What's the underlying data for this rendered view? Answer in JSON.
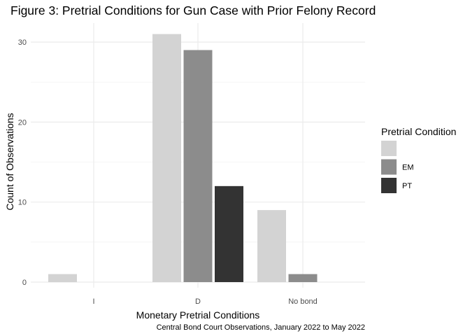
{
  "chart_data": {
    "type": "bar",
    "title": "Figure 3: Pretrial Conditions for Gun Case with Prior Felony Record",
    "xlabel": "Monetary Pretrial Conditions",
    "ylabel": "Count of Observations",
    "caption": "Central Bond Court Observations, January 2022 to May 2022",
    "categories": [
      "I",
      "D",
      "No bond"
    ],
    "ylim": [
      0,
      32.5
    ],
    "yticks": [
      0,
      10,
      20,
      30
    ],
    "grid": true,
    "legend": {
      "title": "Pretrial Condition",
      "placement": "right"
    },
    "series": [
      {
        "name": "",
        "color": "#d3d3d3",
        "values": [
          1,
          31,
          9
        ]
      },
      {
        "name": "EM",
        "color": "#8c8c8c",
        "values": [
          null,
          29,
          1
        ]
      },
      {
        "name": "PT",
        "color": "#333333",
        "values": [
          null,
          12,
          null
        ]
      }
    ]
  }
}
